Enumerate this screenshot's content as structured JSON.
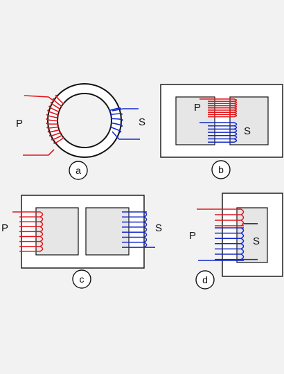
{
  "colors": {
    "background": "#f2f2f2",
    "primary_winding": "#e0161b",
    "secondary_winding": "#1228cc",
    "core_outline": "#111111",
    "core_window": "#e6e6e6"
  },
  "diagrams": [
    {
      "id": "a",
      "primary_label": "P",
      "secondary_label": "S",
      "caption": "a"
    },
    {
      "id": "b",
      "primary_label": "P",
      "secondary_label": "S",
      "caption": "b"
    },
    {
      "id": "c",
      "primary_label": "P",
      "secondary_label": "S",
      "caption": "c"
    },
    {
      "id": "d",
      "primary_label": "P",
      "secondary_label": "S",
      "caption": "d"
    }
  ]
}
